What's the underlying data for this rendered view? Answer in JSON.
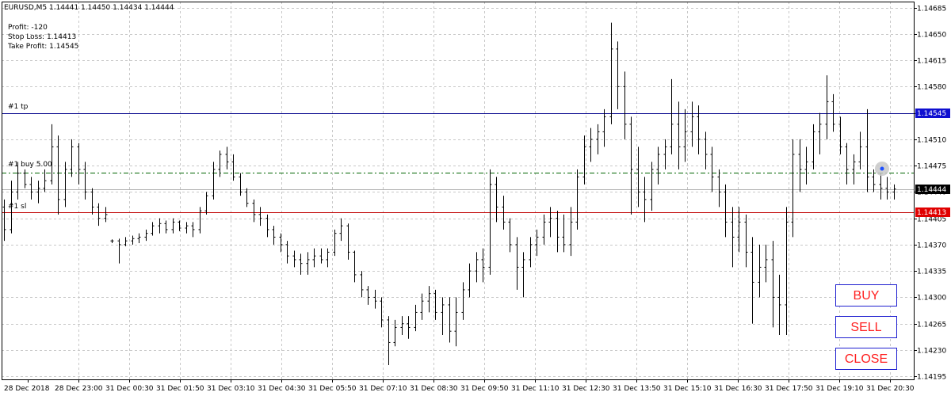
{
  "chart_data": {
    "type": "ohlc",
    "symbol_line": "EURUSD,M5  1.14441 1.14450 1.14434 1.14444",
    "info": {
      "profit": "Profit: -120",
      "stop_loss": "Stop Loss: 1.14413",
      "take_profit": "Take Profit: 1.14545"
    },
    "y_ticks": [
      1.14685,
      1.1465,
      1.14615,
      1.1458,
      1.14545,
      1.1451,
      1.14475,
      1.1444,
      1.14405,
      1.1437,
      1.14335,
      1.143,
      1.14265,
      1.1423,
      1.14195
    ],
    "y_tick_labels": [
      "1.14685",
      "1.14650",
      "1.14615",
      "1.14580",
      "1.14545",
      "1.14510",
      "1.14475",
      "1.14440",
      "1.14405",
      "1.14370",
      "1.14335",
      "1.14300",
      "1.14265",
      "1.14230",
      "1.14195"
    ],
    "ylim": [
      1.14191,
      1.14693
    ],
    "x_labels": [
      "28 Dec 2018",
      "28 Dec 23:00",
      "31 Dec 00:30",
      "31 Dec 01:50",
      "31 Dec 03:10",
      "31 Dec 04:30",
      "31 Dec 05:50",
      "31 Dec 07:10",
      "31 Dec 08:30",
      "31 Dec 09:50",
      "31 Dec 11:10",
      "31 Dec 12:30",
      "31 Dec 13:50",
      "31 Dec 15:10",
      "31 Dec 16:30",
      "31 Dec 17:50",
      "31 Dec 19:10",
      "31 Dec 20:30"
    ],
    "levels": [
      {
        "name": "tp",
        "label": "#1 tp",
        "price": 1.14545,
        "price_label": "1.14545",
        "color": "#00008b",
        "label_bg": "#1010d0",
        "style": "solid"
      },
      {
        "name": "entry",
        "label": "#1 buy 5.00",
        "price": 1.14466,
        "color": "#006400",
        "style": "dashdot"
      },
      {
        "name": "sl",
        "label": "#1 sl",
        "price": 1.14413,
        "price_label": "1.14413",
        "color": "#c00000",
        "label_bg": "#e00000",
        "style": "solid"
      }
    ],
    "current_price": {
      "price": 1.14444,
      "label": "1.14444",
      "color": "#b0b0b0",
      "label_bg": "#000000"
    },
    "bars": [
      {
        "o": 1.1442,
        "h": 1.1443,
        "l": 1.14375,
        "c": 1.1439
      },
      {
        "o": 1.1439,
        "h": 1.14455,
        "l": 1.14385,
        "c": 1.1444
      },
      {
        "o": 1.1444,
        "h": 1.1448,
        "l": 1.1443,
        "c": 1.14465
      },
      {
        "o": 1.14465,
        "h": 1.1447,
        "l": 1.14445,
        "c": 1.1445
      },
      {
        "o": 1.1445,
        "h": 1.1446,
        "l": 1.1443,
        "c": 1.1444
      },
      {
        "o": 1.1444,
        "h": 1.14455,
        "l": 1.14425,
        "c": 1.14445
      },
      {
        "o": 1.14445,
        "h": 1.1447,
        "l": 1.1444,
        "c": 1.14455
      },
      {
        "o": 1.14455,
        "h": 1.1453,
        "l": 1.1445,
        "c": 1.145
      },
      {
        "o": 1.145,
        "h": 1.14515,
        "l": 1.1441,
        "c": 1.1443
      },
      {
        "o": 1.1443,
        "h": 1.1448,
        "l": 1.1442,
        "c": 1.1447
      },
      {
        "o": 1.1447,
        "h": 1.1451,
        "l": 1.1446,
        "c": 1.145
      },
      {
        "o": 1.145,
        "h": 1.14505,
        "l": 1.1445,
        "c": 1.1447
      },
      {
        "o": 1.1447,
        "h": 1.1448,
        "l": 1.1443,
        "c": 1.1444
      },
      {
        "o": 1.1444,
        "h": 1.14445,
        "l": 1.1441,
        "c": 1.1442
      },
      {
        "o": 1.1442,
        "h": 1.14425,
        "l": 1.14395,
        "c": 1.14405
      },
      {
        "o": 1.14405,
        "h": 1.1442,
        "l": 1.144,
        "c": 1.1441
      },
      {
        "o": 1.14375,
        "h": 1.14377,
        "l": 1.14372,
        "c": 1.14375
      },
      {
        "o": 1.14375,
        "h": 1.14378,
        "l": 1.14345,
        "c": 1.1437
      },
      {
        "o": 1.1437,
        "h": 1.1438,
        "l": 1.14368,
        "c": 1.14375
      },
      {
        "o": 1.14375,
        "h": 1.14382,
        "l": 1.1437,
        "c": 1.14378
      },
      {
        "o": 1.14378,
        "h": 1.14385,
        "l": 1.14372,
        "c": 1.1438
      },
      {
        "o": 1.1438,
        "h": 1.1439,
        "l": 1.14375,
        "c": 1.14385
      },
      {
        "o": 1.14385,
        "h": 1.144,
        "l": 1.14382,
        "c": 1.14395
      },
      {
        "o": 1.14395,
        "h": 1.14405,
        "l": 1.14385,
        "c": 1.14398
      },
      {
        "o": 1.14398,
        "h": 1.14402,
        "l": 1.14385,
        "c": 1.1439
      },
      {
        "o": 1.1439,
        "h": 1.14405,
        "l": 1.14385,
        "c": 1.144
      },
      {
        "o": 1.144,
        "h": 1.14402,
        "l": 1.14388,
        "c": 1.14392
      },
      {
        "o": 1.14392,
        "h": 1.144,
        "l": 1.14385,
        "c": 1.14395
      },
      {
        "o": 1.14395,
        "h": 1.144,
        "l": 1.1438,
        "c": 1.1439
      },
      {
        "o": 1.1439,
        "h": 1.1442,
        "l": 1.14385,
        "c": 1.14415
      },
      {
        "o": 1.14415,
        "h": 1.1444,
        "l": 1.1441,
        "c": 1.14435
      },
      {
        "o": 1.14435,
        "h": 1.1448,
        "l": 1.1443,
        "c": 1.1447
      },
      {
        "o": 1.1447,
        "h": 1.14495,
        "l": 1.1446,
        "c": 1.1449
      },
      {
        "o": 1.1449,
        "h": 1.145,
        "l": 1.1447,
        "c": 1.1448
      },
      {
        "o": 1.1448,
        "h": 1.1449,
        "l": 1.14455,
        "c": 1.1446
      },
      {
        "o": 1.1446,
        "h": 1.14465,
        "l": 1.14435,
        "c": 1.1444
      },
      {
        "o": 1.1444,
        "h": 1.14445,
        "l": 1.1442,
        "c": 1.14425
      },
      {
        "o": 1.14425,
        "h": 1.1443,
        "l": 1.144,
        "c": 1.1441
      },
      {
        "o": 1.1441,
        "h": 1.1442,
        "l": 1.14395,
        "c": 1.14405
      },
      {
        "o": 1.14405,
        "h": 1.1441,
        "l": 1.1438,
        "c": 1.1439
      },
      {
        "o": 1.1439,
        "h": 1.14395,
        "l": 1.1437,
        "c": 1.1438
      },
      {
        "o": 1.1438,
        "h": 1.14385,
        "l": 1.1436,
        "c": 1.1437
      },
      {
        "o": 1.1437,
        "h": 1.14375,
        "l": 1.14345,
        "c": 1.14355
      },
      {
        "o": 1.14355,
        "h": 1.14362,
        "l": 1.1434,
        "c": 1.1435
      },
      {
        "o": 1.1435,
        "h": 1.14358,
        "l": 1.1433,
        "c": 1.14345
      },
      {
        "o": 1.14345,
        "h": 1.1436,
        "l": 1.1433,
        "c": 1.1435
      },
      {
        "o": 1.1435,
        "h": 1.14365,
        "l": 1.1434,
        "c": 1.14355
      },
      {
        "o": 1.14355,
        "h": 1.14365,
        "l": 1.14345,
        "c": 1.1435
      },
      {
        "o": 1.1435,
        "h": 1.14365,
        "l": 1.1434,
        "c": 1.1436
      },
      {
        "o": 1.1436,
        "h": 1.1439,
        "l": 1.14355,
        "c": 1.14385
      },
      {
        "o": 1.14385,
        "h": 1.14405,
        "l": 1.14375,
        "c": 1.14395
      },
      {
        "o": 1.14395,
        "h": 1.14398,
        "l": 1.1435,
        "c": 1.1436
      },
      {
        "o": 1.1436,
        "h": 1.14362,
        "l": 1.1432,
        "c": 1.1433
      },
      {
        "o": 1.1433,
        "h": 1.14335,
        "l": 1.143,
        "c": 1.1431
      },
      {
        "o": 1.1431,
        "h": 1.14315,
        "l": 1.1429,
        "c": 1.143
      },
      {
        "o": 1.143,
        "h": 1.1431,
        "l": 1.14285,
        "c": 1.14295
      },
      {
        "o": 1.14295,
        "h": 1.143,
        "l": 1.1426,
        "c": 1.1427
      },
      {
        "o": 1.1427,
        "h": 1.14275,
        "l": 1.1421,
        "c": 1.1424
      },
      {
        "o": 1.1424,
        "h": 1.1427,
        "l": 1.14235,
        "c": 1.1426
      },
      {
        "o": 1.1426,
        "h": 1.14275,
        "l": 1.1425,
        "c": 1.14265
      },
      {
        "o": 1.14265,
        "h": 1.14275,
        "l": 1.14245,
        "c": 1.1426
      },
      {
        "o": 1.1426,
        "h": 1.1429,
        "l": 1.14255,
        "c": 1.1428
      },
      {
        "o": 1.1428,
        "h": 1.14305,
        "l": 1.1427,
        "c": 1.14295
      },
      {
        "o": 1.14295,
        "h": 1.14315,
        "l": 1.1428,
        "c": 1.14305
      },
      {
        "o": 1.14305,
        "h": 1.1431,
        "l": 1.1427,
        "c": 1.1428
      },
      {
        "o": 1.1428,
        "h": 1.143,
        "l": 1.1425,
        "c": 1.1429
      },
      {
        "o": 1.1429,
        "h": 1.143,
        "l": 1.1424,
        "c": 1.14255
      },
      {
        "o": 1.14255,
        "h": 1.143,
        "l": 1.14235,
        "c": 1.1428
      },
      {
        "o": 1.1428,
        "h": 1.1432,
        "l": 1.1427,
        "c": 1.1431
      },
      {
        "o": 1.1431,
        "h": 1.14345,
        "l": 1.143,
        "c": 1.14335
      },
      {
        "o": 1.14335,
        "h": 1.1436,
        "l": 1.1432,
        "c": 1.1435
      },
      {
        "o": 1.1435,
        "h": 1.14365,
        "l": 1.1432,
        "c": 1.1434
      },
      {
        "o": 1.1434,
        "h": 1.1447,
        "l": 1.1433,
        "c": 1.1445
      },
      {
        "o": 1.1445,
        "h": 1.1446,
        "l": 1.144,
        "c": 1.1442
      },
      {
        "o": 1.1442,
        "h": 1.14435,
        "l": 1.1439,
        "c": 1.144
      },
      {
        "o": 1.144,
        "h": 1.14405,
        "l": 1.1436,
        "c": 1.1437
      },
      {
        "o": 1.1437,
        "h": 1.1438,
        "l": 1.1431,
        "c": 1.1434
      },
      {
        "o": 1.1434,
        "h": 1.1436,
        "l": 1.143,
        "c": 1.1435
      },
      {
        "o": 1.1435,
        "h": 1.1438,
        "l": 1.1434,
        "c": 1.1437
      },
      {
        "o": 1.1437,
        "h": 1.1439,
        "l": 1.14355,
        "c": 1.1438
      },
      {
        "o": 1.1438,
        "h": 1.1441,
        "l": 1.1437,
        "c": 1.144
      },
      {
        "o": 1.144,
        "h": 1.1442,
        "l": 1.1438,
        "c": 1.14405
      },
      {
        "o": 1.14405,
        "h": 1.14415,
        "l": 1.1436,
        "c": 1.1438
      },
      {
        "o": 1.1438,
        "h": 1.1441,
        "l": 1.1436,
        "c": 1.1437
      },
      {
        "o": 1.1437,
        "h": 1.1442,
        "l": 1.14355,
        "c": 1.144
      },
      {
        "o": 1.144,
        "h": 1.1447,
        "l": 1.1439,
        "c": 1.1446
      },
      {
        "o": 1.1446,
        "h": 1.14515,
        "l": 1.1445,
        "c": 1.145
      },
      {
        "o": 1.145,
        "h": 1.14525,
        "l": 1.1448,
        "c": 1.1451
      },
      {
        "o": 1.1451,
        "h": 1.1453,
        "l": 1.1449,
        "c": 1.1452
      },
      {
        "o": 1.1452,
        "h": 1.1455,
        "l": 1.145,
        "c": 1.1454
      },
      {
        "o": 1.1454,
        "h": 1.14665,
        "l": 1.1453,
        "c": 1.1463
      },
      {
        "o": 1.1463,
        "h": 1.1464,
        "l": 1.1455,
        "c": 1.1458
      },
      {
        "o": 1.1458,
        "h": 1.146,
        "l": 1.1451,
        "c": 1.1453
      },
      {
        "o": 1.1453,
        "h": 1.1454,
        "l": 1.1441,
        "c": 1.1447
      },
      {
        "o": 1.1447,
        "h": 1.145,
        "l": 1.1442,
        "c": 1.1444
      },
      {
        "o": 1.1444,
        "h": 1.1446,
        "l": 1.144,
        "c": 1.1443
      },
      {
        "o": 1.1443,
        "h": 1.1448,
        "l": 1.14415,
        "c": 1.1447
      },
      {
        "o": 1.1447,
        "h": 1.145,
        "l": 1.1445,
        "c": 1.1449
      },
      {
        "o": 1.1449,
        "h": 1.1451,
        "l": 1.1447,
        "c": 1.145
      },
      {
        "o": 1.145,
        "h": 1.1459,
        "l": 1.1449,
        "c": 1.1453
      },
      {
        "o": 1.1453,
        "h": 1.1456,
        "l": 1.1447,
        "c": 1.145
      },
      {
        "o": 1.145,
        "h": 1.1455,
        "l": 1.1448,
        "c": 1.1452
      },
      {
        "o": 1.1452,
        "h": 1.1456,
        "l": 1.145,
        "c": 1.1454
      },
      {
        "o": 1.1454,
        "h": 1.14555,
        "l": 1.1449,
        "c": 1.1451
      },
      {
        "o": 1.1451,
        "h": 1.1452,
        "l": 1.1447,
        "c": 1.1449
      },
      {
        "o": 1.1449,
        "h": 1.145,
        "l": 1.1444,
        "c": 1.1446
      },
      {
        "o": 1.1446,
        "h": 1.1447,
        "l": 1.1442,
        "c": 1.1444
      },
      {
        "o": 1.1444,
        "h": 1.1445,
        "l": 1.1438,
        "c": 1.144
      },
      {
        "o": 1.144,
        "h": 1.1442,
        "l": 1.1434,
        "c": 1.1438
      },
      {
        "o": 1.1438,
        "h": 1.1442,
        "l": 1.1436,
        "c": 1.144
      },
      {
        "o": 1.144,
        "h": 1.1441,
        "l": 1.1434,
        "c": 1.1436
      },
      {
        "o": 1.1436,
        "h": 1.1438,
        "l": 1.14265,
        "c": 1.1432
      },
      {
        "o": 1.1432,
        "h": 1.1437,
        "l": 1.143,
        "c": 1.1434
      },
      {
        "o": 1.1434,
        "h": 1.1437,
        "l": 1.1432,
        "c": 1.1435
      },
      {
        "o": 1.1435,
        "h": 1.14375,
        "l": 1.1426,
        "c": 1.143
      },
      {
        "o": 1.143,
        "h": 1.1433,
        "l": 1.1425,
        "c": 1.1429
      },
      {
        "o": 1.1429,
        "h": 1.1442,
        "l": 1.1425,
        "c": 1.144
      },
      {
        "o": 1.144,
        "h": 1.1451,
        "l": 1.1438,
        "c": 1.1449
      },
      {
        "o": 1.1449,
        "h": 1.1451,
        "l": 1.1444,
        "c": 1.1447
      },
      {
        "o": 1.1447,
        "h": 1.145,
        "l": 1.1445,
        "c": 1.1448
      },
      {
        "o": 1.1448,
        "h": 1.1453,
        "l": 1.1447,
        "c": 1.1452
      },
      {
        "o": 1.1452,
        "h": 1.14545,
        "l": 1.1449,
        "c": 1.1453
      },
      {
        "o": 1.1453,
        "h": 1.14595,
        "l": 1.1451,
        "c": 1.1456
      },
      {
        "o": 1.1456,
        "h": 1.1457,
        "l": 1.1452,
        "c": 1.1453
      },
      {
        "o": 1.1453,
        "h": 1.1454,
        "l": 1.1449,
        "c": 1.145
      },
      {
        "o": 1.145,
        "h": 1.14505,
        "l": 1.1445,
        "c": 1.1447
      },
      {
        "o": 1.1447,
        "h": 1.1449,
        "l": 1.1445,
        "c": 1.1448
      },
      {
        "o": 1.1448,
        "h": 1.1452,
        "l": 1.1447,
        "c": 1.145
      },
      {
        "o": 1.145,
        "h": 1.1455,
        "l": 1.1444,
        "c": 1.1446
      },
      {
        "o": 1.1446,
        "h": 1.1447,
        "l": 1.1444,
        "c": 1.1445
      },
      {
        "o": 1.1445,
        "h": 1.14465,
        "l": 1.1443,
        "c": 1.14445
      },
      {
        "o": 1.14445,
        "h": 1.1446,
        "l": 1.1443,
        "c": 1.1444
      },
      {
        "o": 1.1444,
        "h": 1.1445,
        "l": 1.1443,
        "c": 1.14444
      }
    ]
  },
  "buttons": {
    "buy": "BUY",
    "sell": "SELL",
    "close": "CLOSE"
  },
  "icons": {
    "cursor": "crosshair-cursor-icon"
  }
}
